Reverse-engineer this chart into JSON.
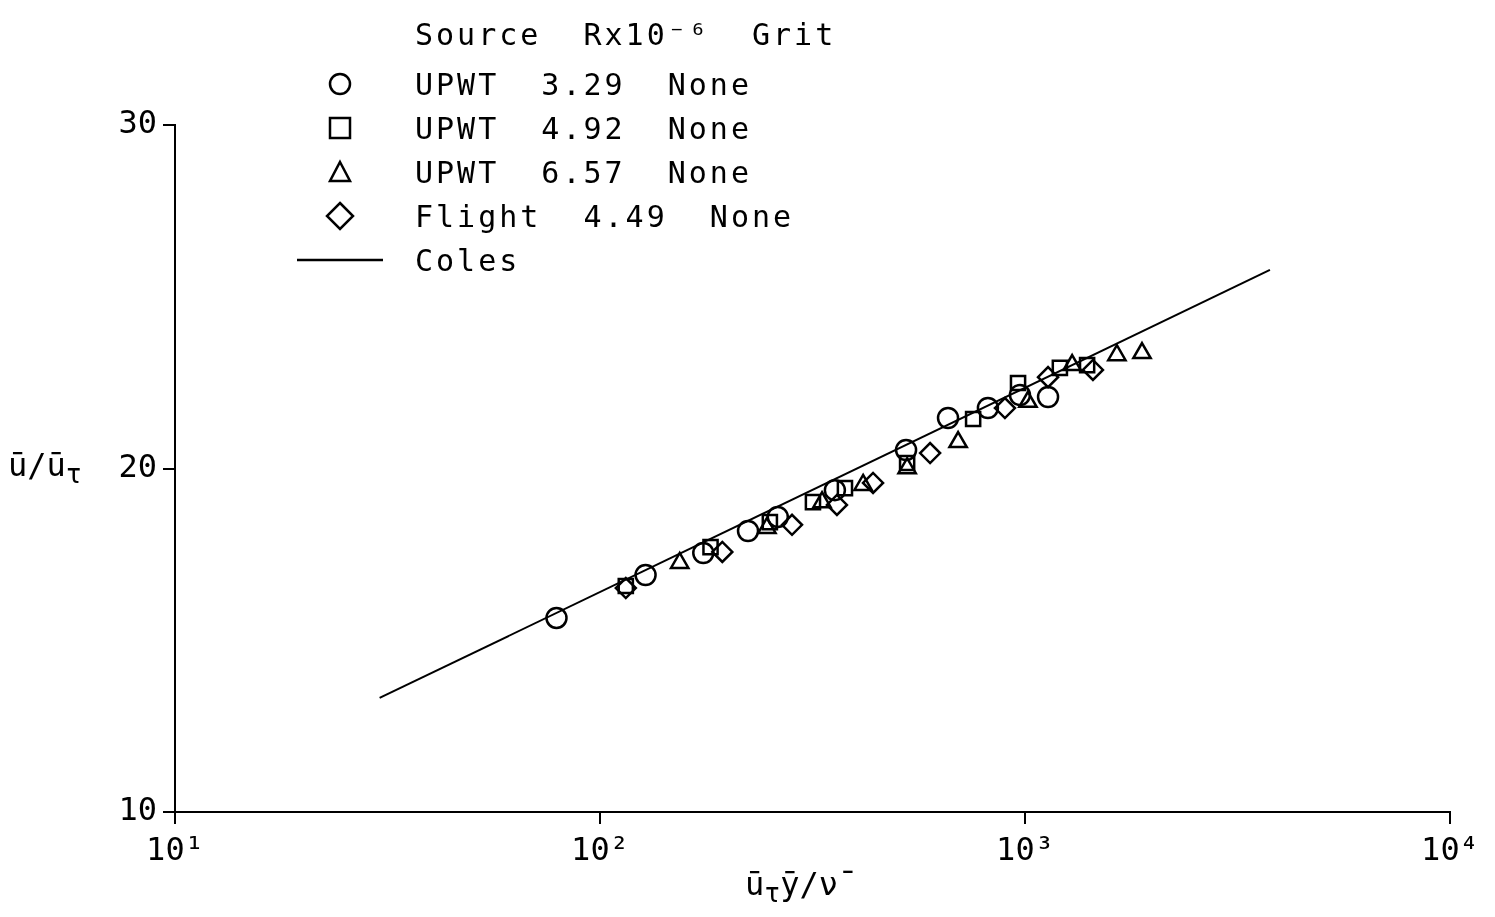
{
  "chart_data": {
    "type": "scatter",
    "xlabel": "ū$_{τ}$ȳ/ν̄",
    "ylabel": "ū/ū$_{τ}$",
    "legend_title": "Source  Rx10⁻⁶  Grit",
    "log": "x",
    "grid": false,
    "legend": "top left",
    "xlim": [
      10,
      10000
    ],
    "xticks": [
      {
        "value": 10,
        "label": "10¹"
      },
      {
        "value": 100,
        "label": "10²"
      },
      {
        "value": 1000,
        "label": "10³"
      },
      {
        "value": 10000,
        "label": "10⁴"
      }
    ],
    "ylim": [
      10,
      30
    ],
    "yticks": [
      10,
      20,
      30
    ],
    "series": [
      {
        "name": "UPWT  3.29  None",
        "color": "#000000",
        "marker": "circle",
        "x": [
          79,
          128,
          175,
          223,
          262,
          357,
          525,
          659,
          818,
          973,
          1133
        ],
        "values": [
          15.65,
          16.9,
          17.54,
          18.18,
          18.59,
          19.37,
          20.54,
          21.47,
          21.76,
          22.14,
          22.08
        ]
      },
      {
        "name": "UPWT  4.92  None",
        "color": "#000000",
        "marker": "square",
        "x": [
          115,
          182,
          251,
          317,
          377,
          528,
          755,
          963,
          1208,
          1400
        ],
        "values": [
          16.58,
          17.71,
          18.44,
          19.02,
          19.43,
          20.16,
          21.44,
          22.49,
          22.93,
          23.01
        ]
      },
      {
        "name": "UPWT  6.57  None",
        "color": "#000000",
        "marker": "triangle",
        "x": [
          154,
          247,
          333,
          416,
          528,
          696,
          1016,
          1291,
          1645,
          1885
        ],
        "values": [
          17.25,
          18.27,
          19.02,
          19.52,
          20.01,
          20.77,
          21.94,
          23.01,
          23.3,
          23.36
        ]
      },
      {
        "name": "Flight  4.49  None",
        "color": "#000000",
        "marker": "diamond",
        "x": [
          115,
          194,
          283,
          361,
          439,
          598,
          897,
          1133,
          1445
        ],
        "values": [
          16.52,
          17.57,
          18.36,
          18.94,
          19.58,
          20.45,
          21.76,
          22.66,
          22.87
        ]
      },
      {
        "name": "Coles",
        "type": "line",
        "color": "#000000",
        "marker": "none",
        "line_style": "solid",
        "x": [
          30.3,
          3770
        ],
        "values": [
          13.32,
          25.78
        ]
      }
    ]
  }
}
